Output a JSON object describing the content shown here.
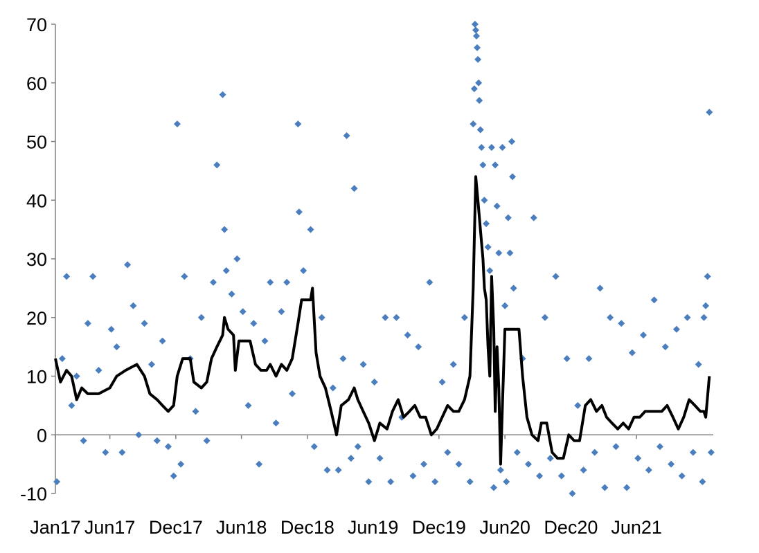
{
  "colors": {
    "scatter": "#4a7ebf",
    "line": "#000000",
    "axis": "#7f7f7f"
  },
  "chart_data": {
    "type": "scatter",
    "title": "",
    "xlabel": "",
    "ylabel": "",
    "ylim": [
      -10,
      70
    ],
    "xlim": [
      "2017-01-01",
      "2021-12-31"
    ],
    "yticks": [
      "70",
      "60",
      "50",
      "40",
      "30",
      "20",
      "10",
      "0",
      "-10"
    ],
    "xticks": [
      {
        "label": "Jan17",
        "date": "2017-01-01"
      },
      {
        "label": "Jun17",
        "date": "2017-06-01"
      },
      {
        "label": "Dec17",
        "date": "2017-12-01"
      },
      {
        "label": "Jun18",
        "date": "2018-06-01"
      },
      {
        "label": "Dec18",
        "date": "2018-12-01"
      },
      {
        "label": "Jun19",
        "date": "2019-06-01"
      },
      {
        "label": "Dec19",
        "date": "2019-12-01"
      },
      {
        "label": "Jun20",
        "date": "2020-06-01"
      },
      {
        "label": "Dec20",
        "date": "2020-12-01"
      },
      {
        "label": "Jun21",
        "date": "2021-06-01"
      }
    ],
    "grid": false,
    "legend": "none",
    "series": [
      {
        "type": "scatter",
        "points": [
          [
            "2017-01-05",
            -8
          ],
          [
            "2017-01-20",
            13
          ],
          [
            "2017-02-01",
            27
          ],
          [
            "2017-02-15",
            5
          ],
          [
            "2017-03-01",
            10
          ],
          [
            "2017-03-20",
            -1
          ],
          [
            "2017-04-01",
            19
          ],
          [
            "2017-04-15",
            27
          ],
          [
            "2017-05-01",
            11
          ],
          [
            "2017-05-20",
            -3
          ],
          [
            "2017-06-05",
            18
          ],
          [
            "2017-06-20",
            15
          ],
          [
            "2017-07-05",
            -3
          ],
          [
            "2017-07-20",
            29
          ],
          [
            "2017-08-05",
            22
          ],
          [
            "2017-08-20",
            0
          ],
          [
            "2017-09-05",
            19
          ],
          [
            "2017-09-25",
            12
          ],
          [
            "2017-10-10",
            -1
          ],
          [
            "2017-10-25",
            16
          ],
          [
            "2017-11-10",
            -2
          ],
          [
            "2017-11-25",
            -7
          ],
          [
            "2017-12-05",
            53
          ],
          [
            "2017-12-15",
            -5
          ],
          [
            "2017-12-25",
            27
          ],
          [
            "2018-01-10",
            13
          ],
          [
            "2018-01-25",
            4
          ],
          [
            "2018-02-10",
            20
          ],
          [
            "2018-02-25",
            -1
          ],
          [
            "2018-03-15",
            26
          ],
          [
            "2018-03-25",
            46
          ],
          [
            "2018-04-10",
            58
          ],
          [
            "2018-04-15",
            35
          ],
          [
            "2018-04-20",
            28
          ],
          [
            "2018-05-05",
            24
          ],
          [
            "2018-05-20",
            30
          ],
          [
            "2018-06-05",
            21
          ],
          [
            "2018-06-20",
            5
          ],
          [
            "2018-07-05",
            19
          ],
          [
            "2018-07-20",
            -5
          ],
          [
            "2018-08-05",
            16
          ],
          [
            "2018-08-20",
            26
          ],
          [
            "2018-09-05",
            2
          ],
          [
            "2018-09-20",
            21
          ],
          [
            "2018-10-05",
            26
          ],
          [
            "2018-10-20",
            7
          ],
          [
            "2018-11-05",
            53
          ],
          [
            "2018-11-08",
            38
          ],
          [
            "2018-11-20",
            28
          ],
          [
            "2018-12-10",
            35
          ],
          [
            "2018-12-20",
            -2
          ],
          [
            "2019-01-10",
            20
          ],
          [
            "2019-01-25",
            -6
          ],
          [
            "2019-02-10",
            8
          ],
          [
            "2019-02-25",
            -6
          ],
          [
            "2019-03-10",
            13
          ],
          [
            "2019-03-20",
            51
          ],
          [
            "2019-04-01",
            -4
          ],
          [
            "2019-04-10",
            42
          ],
          [
            "2019-04-20",
            -2
          ],
          [
            "2019-05-05",
            12
          ],
          [
            "2019-05-20",
            -8
          ],
          [
            "2019-06-05",
            9
          ],
          [
            "2019-06-20",
            -4
          ],
          [
            "2019-07-05",
            20
          ],
          [
            "2019-07-20",
            -8
          ],
          [
            "2019-08-05",
            20
          ],
          [
            "2019-08-20",
            3
          ],
          [
            "2019-09-05",
            17
          ],
          [
            "2019-09-20",
            -7
          ],
          [
            "2019-10-05",
            15
          ],
          [
            "2019-10-20",
            -5
          ],
          [
            "2019-11-05",
            26
          ],
          [
            "2019-11-20",
            -8
          ],
          [
            "2019-12-10",
            9
          ],
          [
            "2019-12-25",
            -3
          ],
          [
            "2020-01-10",
            12
          ],
          [
            "2020-01-25",
            -5
          ],
          [
            "2020-02-10",
            20
          ],
          [
            "2020-02-25",
            -8
          ],
          [
            "2020-03-05",
            53
          ],
          [
            "2020-03-08",
            59
          ],
          [
            "2020-03-10",
            70
          ],
          [
            "2020-03-12",
            69
          ],
          [
            "2020-03-14",
            68
          ],
          [
            "2020-03-16",
            66
          ],
          [
            "2020-03-18",
            64
          ],
          [
            "2020-03-20",
            60
          ],
          [
            "2020-03-22",
            57
          ],
          [
            "2020-03-25",
            52
          ],
          [
            "2020-03-28",
            49
          ],
          [
            "2020-04-01",
            46
          ],
          [
            "2020-04-05",
            40
          ],
          [
            "2020-04-10",
            36
          ],
          [
            "2020-04-15",
            32
          ],
          [
            "2020-04-20",
            28
          ],
          [
            "2020-04-25",
            49
          ],
          [
            "2020-05-01",
            -9
          ],
          [
            "2020-05-05",
            46
          ],
          [
            "2020-05-10",
            39
          ],
          [
            "2020-05-15",
            31
          ],
          [
            "2020-05-20",
            -6
          ],
          [
            "2020-05-25",
            49
          ],
          [
            "2020-06-01",
            22
          ],
          [
            "2020-06-05",
            -8
          ],
          [
            "2020-06-10",
            37
          ],
          [
            "2020-06-15",
            31
          ],
          [
            "2020-06-20",
            50
          ],
          [
            "2020-06-22",
            44
          ],
          [
            "2020-06-25",
            25
          ],
          [
            "2020-07-05",
            -3
          ],
          [
            "2020-07-20",
            13
          ],
          [
            "2020-08-05",
            -5
          ],
          [
            "2020-08-20",
            37
          ],
          [
            "2020-09-05",
            -7
          ],
          [
            "2020-09-20",
            20
          ],
          [
            "2020-10-05",
            -4
          ],
          [
            "2020-10-20",
            27
          ],
          [
            "2020-11-05",
            -7
          ],
          [
            "2020-11-20",
            13
          ],
          [
            "2020-12-05",
            -10
          ],
          [
            "2020-12-20",
            5
          ],
          [
            "2021-01-05",
            -6
          ],
          [
            "2021-01-20",
            13
          ],
          [
            "2021-02-05",
            -3
          ],
          [
            "2021-02-20",
            25
          ],
          [
            "2021-03-05",
            -9
          ],
          [
            "2021-03-20",
            20
          ],
          [
            "2021-04-05",
            -2
          ],
          [
            "2021-04-20",
            19
          ],
          [
            "2021-05-05",
            -9
          ],
          [
            "2021-05-20",
            14
          ],
          [
            "2021-06-05",
            -4
          ],
          [
            "2021-06-20",
            17
          ],
          [
            "2021-07-05",
            -6
          ],
          [
            "2021-07-20",
            23
          ],
          [
            "2021-08-05",
            -2
          ],
          [
            "2021-08-20",
            15
          ],
          [
            "2021-09-05",
            -5
          ],
          [
            "2021-09-20",
            18
          ],
          [
            "2021-10-05",
            -7
          ],
          [
            "2021-10-20",
            20
          ],
          [
            "2021-11-05",
            -3
          ],
          [
            "2021-11-20",
            12
          ],
          [
            "2021-12-01",
            -8
          ],
          [
            "2021-12-05",
            20
          ],
          [
            "2021-12-10",
            22
          ],
          [
            "2021-12-15",
            27
          ],
          [
            "2021-12-20",
            55
          ],
          [
            "2021-12-25",
            -3
          ]
        ]
      },
      {
        "type": "line",
        "points": [
          [
            "2017-01-01",
            13
          ],
          [
            "2017-01-15",
            9
          ],
          [
            "2017-02-01",
            11
          ],
          [
            "2017-02-15",
            10
          ],
          [
            "2017-03-01",
            6
          ],
          [
            "2017-03-15",
            8
          ],
          [
            "2017-04-01",
            7
          ],
          [
            "2017-05-01",
            7
          ],
          [
            "2017-06-01",
            8
          ],
          [
            "2017-06-20",
            10
          ],
          [
            "2017-07-15",
            11
          ],
          [
            "2017-08-15",
            12
          ],
          [
            "2017-09-05",
            10
          ],
          [
            "2017-09-20",
            7
          ],
          [
            "2017-10-10",
            6
          ],
          [
            "2017-10-25",
            5
          ],
          [
            "2017-11-10",
            4
          ],
          [
            "2017-11-25",
            5
          ],
          [
            "2017-12-05",
            10
          ],
          [
            "2017-12-20",
            13
          ],
          [
            "2018-01-10",
            13
          ],
          [
            "2018-01-20",
            9
          ],
          [
            "2018-02-10",
            8
          ],
          [
            "2018-02-25",
            9
          ],
          [
            "2018-03-10",
            13
          ],
          [
            "2018-03-25",
            15
          ],
          [
            "2018-04-10",
            17
          ],
          [
            "2018-04-15",
            20
          ],
          [
            "2018-04-25",
            18
          ],
          [
            "2018-05-10",
            17
          ],
          [
            "2018-05-15",
            11
          ],
          [
            "2018-05-25",
            16
          ],
          [
            "2018-06-10",
            16
          ],
          [
            "2018-06-25",
            16
          ],
          [
            "2018-07-10",
            12
          ],
          [
            "2018-07-25",
            11
          ],
          [
            "2018-08-10",
            11
          ],
          [
            "2018-08-20",
            12
          ],
          [
            "2018-09-05",
            10
          ],
          [
            "2018-09-20",
            12
          ],
          [
            "2018-10-05",
            11
          ],
          [
            "2018-10-20",
            13
          ],
          [
            "2018-11-05",
            19
          ],
          [
            "2018-11-15",
            23
          ],
          [
            "2018-12-10",
            23
          ],
          [
            "2018-12-15",
            25
          ],
          [
            "2018-12-25",
            14
          ],
          [
            "2019-01-05",
            10
          ],
          [
            "2019-01-20",
            8
          ],
          [
            "2019-02-05",
            4
          ],
          [
            "2019-02-20",
            0
          ],
          [
            "2019-03-05",
            5
          ],
          [
            "2019-03-25",
            6
          ],
          [
            "2019-04-10",
            8
          ],
          [
            "2019-04-20",
            6
          ],
          [
            "2019-05-05",
            4
          ],
          [
            "2019-05-20",
            2
          ],
          [
            "2019-06-05",
            -1
          ],
          [
            "2019-06-20",
            2
          ],
          [
            "2019-07-10",
            1
          ],
          [
            "2019-07-25",
            4
          ],
          [
            "2019-08-10",
            6
          ],
          [
            "2019-08-25",
            3
          ],
          [
            "2019-09-10",
            4
          ],
          [
            "2019-09-25",
            5
          ],
          [
            "2019-10-10",
            3
          ],
          [
            "2019-10-25",
            3
          ],
          [
            "2019-11-10",
            0
          ],
          [
            "2019-11-25",
            1
          ],
          [
            "2019-12-10",
            3
          ],
          [
            "2019-12-25",
            5
          ],
          [
            "2020-01-10",
            4
          ],
          [
            "2020-01-25",
            4
          ],
          [
            "2020-02-10",
            6
          ],
          [
            "2020-02-25",
            10
          ],
          [
            "2020-03-05",
            25
          ],
          [
            "2020-03-12",
            44
          ],
          [
            "2020-03-18",
            40
          ],
          [
            "2020-03-25",
            35
          ],
          [
            "2020-04-01",
            30
          ],
          [
            "2020-04-05",
            25
          ],
          [
            "2020-04-10",
            23
          ],
          [
            "2020-04-15",
            15
          ],
          [
            "2020-04-20",
            10
          ],
          [
            "2020-04-25",
            27
          ],
          [
            "2020-05-01",
            18
          ],
          [
            "2020-05-05",
            4
          ],
          [
            "2020-05-10",
            15
          ],
          [
            "2020-05-15",
            8
          ],
          [
            "2020-05-20",
            -5
          ],
          [
            "2020-05-25",
            5
          ],
          [
            "2020-06-01",
            18
          ],
          [
            "2020-07-10",
            18
          ],
          [
            "2020-07-20",
            10
          ],
          [
            "2020-08-01",
            3
          ],
          [
            "2020-08-15",
            0
          ],
          [
            "2020-09-01",
            -1
          ],
          [
            "2020-09-10",
            2
          ],
          [
            "2020-09-25",
            2
          ],
          [
            "2020-10-10",
            -3
          ],
          [
            "2020-10-25",
            -4
          ],
          [
            "2020-11-10",
            -4
          ],
          [
            "2020-11-25",
            0
          ],
          [
            "2020-12-10",
            -1
          ],
          [
            "2020-12-25",
            -1
          ],
          [
            "2021-01-10",
            5
          ],
          [
            "2021-01-25",
            6
          ],
          [
            "2021-02-10",
            4
          ],
          [
            "2021-02-25",
            5
          ],
          [
            "2021-03-10",
            3
          ],
          [
            "2021-03-25",
            2
          ],
          [
            "2021-04-10",
            1
          ],
          [
            "2021-04-25",
            2
          ],
          [
            "2021-05-10",
            1
          ],
          [
            "2021-05-25",
            3
          ],
          [
            "2021-06-10",
            3
          ],
          [
            "2021-06-25",
            4
          ],
          [
            "2021-07-10",
            4
          ],
          [
            "2021-07-25",
            4
          ],
          [
            "2021-08-10",
            4
          ],
          [
            "2021-08-25",
            5
          ],
          [
            "2021-09-10",
            3
          ],
          [
            "2021-09-25",
            1
          ],
          [
            "2021-10-10",
            3
          ],
          [
            "2021-10-25",
            6
          ],
          [
            "2021-11-10",
            5
          ],
          [
            "2021-11-25",
            4
          ],
          [
            "2021-12-05",
            4
          ],
          [
            "2021-12-10",
            3
          ],
          [
            "2021-12-20",
            10
          ]
        ]
      }
    ]
  }
}
